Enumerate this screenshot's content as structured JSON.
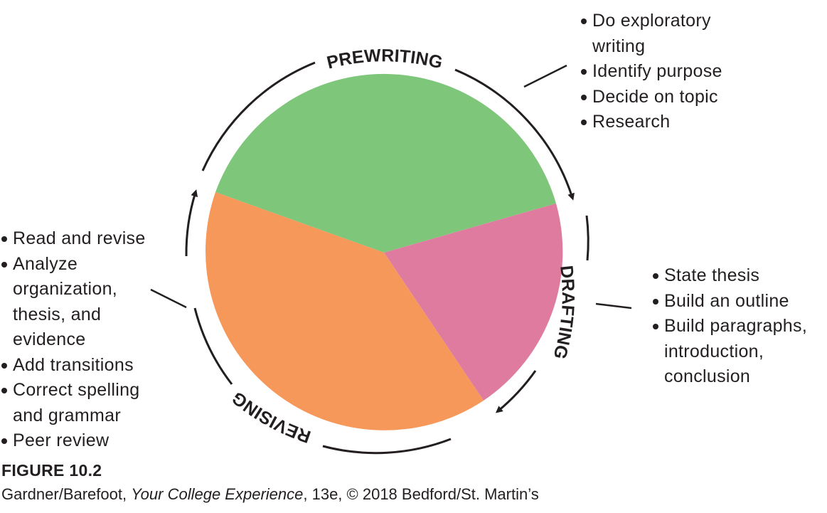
{
  "stages": [
    {
      "name": "PREWRITING",
      "color": "#7dc67a",
      "items": [
        "Do exploratory\nwriting",
        "Identify purpose",
        "Decide on topic",
        "Research"
      ]
    },
    {
      "name": "DRAFTING",
      "color": "#e07ba0",
      "items": [
        "State thesis",
        "Build an outline",
        "Build paragraphs,\nintroduction,\nconclusion"
      ]
    },
    {
      "name": "REVISING",
      "color": "#f5985a",
      "items": [
        "Read and revise",
        "Analyze\norganization,\nthesis, and\nevidence",
        "Add transitions",
        "Correct spelling\nand grammar",
        "Peer review"
      ]
    }
  ],
  "caption": {
    "figure": "FIGURE 10.2",
    "author": "Gardner/Barefoot, ",
    "book_title": "Your College Experience",
    "edition": ", 13e, © 2018 Bedford/St. Martin’s"
  }
}
